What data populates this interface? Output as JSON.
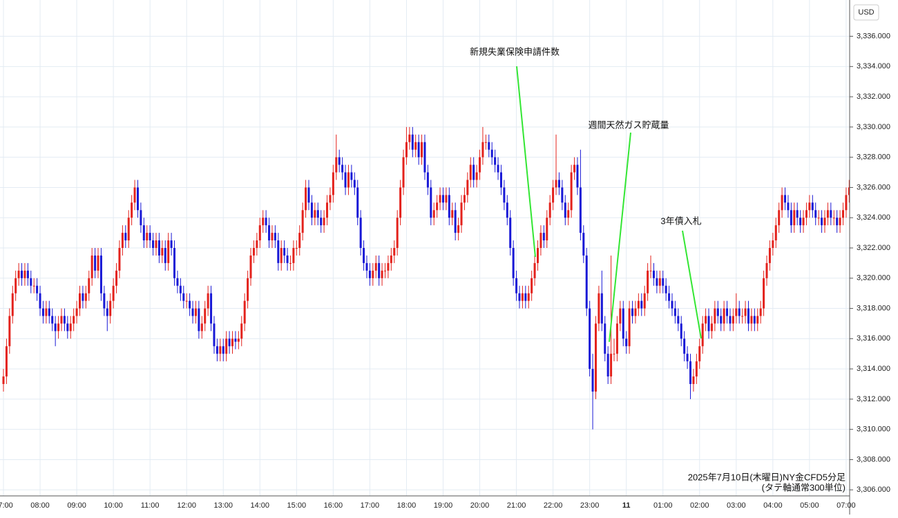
{
  "chart_data": {
    "type": "candlestick",
    "currency": "USD",
    "up_color": "#e3221c",
    "down_color": "#1818d6",
    "grid": true,
    "ylim": [
      3305.6,
      3338.4
    ],
    "yticks": [
      {
        "value": 3306,
        "label": "3,306.000"
      },
      {
        "value": 3308,
        "label": "3,308.000"
      },
      {
        "value": 3310,
        "label": "3,310.000"
      },
      {
        "value": 3312,
        "label": "3,312.000"
      },
      {
        "value": 3314,
        "label": "3,314.000"
      },
      {
        "value": 3316,
        "label": "3,316.000"
      },
      {
        "value": 3318,
        "label": "3,318.000"
      },
      {
        "value": 3320,
        "label": "3,320.000"
      },
      {
        "value": 3322,
        "label": "3,322.000"
      },
      {
        "value": 3324,
        "label": "3,324.000"
      },
      {
        "value": 3326,
        "label": "3,326.000"
      },
      {
        "value": 3328,
        "label": "3,328.000"
      },
      {
        "value": 3330,
        "label": "3,330.000"
      },
      {
        "value": 3332,
        "label": "3,332.000"
      },
      {
        "value": 3334,
        "label": "3,334.000"
      },
      {
        "value": 3336,
        "label": "3,336.000"
      }
    ],
    "annotations": [
      "新規失業保険申請件数",
      "週間天然ガス貯蔵量",
      "3年債入札"
    ],
    "note": [
      "2025年7月10日(木曜日)NY金CFD5分足",
      "(タテ軸通常300単位)"
    ],
    "categories": [
      "07:00",
      null,
      null,
      null,
      null,
      null,
      null,
      null,
      null,
      null,
      null,
      null,
      "08:00",
      null,
      null,
      null,
      null,
      null,
      null,
      null,
      null,
      null,
      null,
      null,
      "09:00",
      null,
      null,
      null,
      null,
      null,
      null,
      null,
      null,
      null,
      null,
      null,
      "10:00",
      null,
      null,
      null,
      null,
      null,
      null,
      null,
      null,
      null,
      null,
      null,
      "11:00",
      null,
      null,
      null,
      null,
      null,
      null,
      null,
      null,
      null,
      null,
      null,
      "12:00",
      null,
      null,
      null,
      null,
      null,
      null,
      null,
      null,
      null,
      null,
      null,
      "13:00",
      null,
      null,
      null,
      null,
      null,
      null,
      null,
      null,
      null,
      null,
      null,
      "14:00",
      null,
      null,
      null,
      null,
      null,
      null,
      null,
      null,
      null,
      null,
      null,
      "15:00",
      null,
      null,
      null,
      null,
      null,
      null,
      null,
      null,
      null,
      null,
      null,
      "16:00",
      null,
      null,
      null,
      null,
      null,
      null,
      null,
      null,
      null,
      null,
      null,
      "17:00",
      null,
      null,
      null,
      null,
      null,
      null,
      null,
      null,
      null,
      null,
      null,
      "18:00",
      null,
      null,
      null,
      null,
      null,
      null,
      null,
      null,
      null,
      null,
      null,
      "19:00",
      null,
      null,
      null,
      null,
      null,
      null,
      null,
      null,
      null,
      null,
      null,
      "20:00",
      null,
      null,
      null,
      null,
      null,
      null,
      null,
      null,
      null,
      null,
      null,
      "21:00",
      null,
      null,
      null,
      null,
      null,
      null,
      null,
      null,
      null,
      null,
      null,
      "22:00",
      null,
      null,
      null,
      null,
      null,
      null,
      null,
      null,
      null,
      null,
      null,
      "23:00",
      null,
      null,
      null,
      null,
      null,
      null,
      null,
      null,
      null,
      null,
      null,
      "11",
      null,
      null,
      null,
      null,
      null,
      null,
      null,
      null,
      null,
      null,
      null,
      "01:00",
      null,
      null,
      null,
      null,
      null,
      null,
      null,
      null,
      null,
      null,
      null,
      "02:00",
      null,
      null,
      null,
      null,
      null,
      null,
      null,
      null,
      null,
      null,
      null,
      "03:00",
      null,
      null,
      null,
      null,
      null,
      null,
      null,
      null,
      null,
      null,
      null,
      "04:00",
      null,
      null,
      null,
      null,
      null,
      null,
      null,
      null,
      null,
      null,
      null,
      "05:00",
      null,
      null,
      null,
      null,
      null,
      null,
      null,
      null,
      null,
      null,
      null,
      "07:00",
      null
    ],
    "open": [
      3313,
      3313.5,
      3315.5,
      3317.5,
      3319,
      3320,
      3320.5,
      3320,
      3320.5,
      3320,
      3319.5,
      3319.5,
      3319,
      3318,
      3317.5,
      3318,
      3317.5,
      3317,
      3316.5,
      3317,
      3317.5,
      3317,
      3316.5,
      3317,
      3317.5,
      3318,
      3319,
      3318.5,
      3319,
      3320,
      3321.5,
      3320.5,
      3321.5,
      3319,
      3318,
      3317.5,
      3318.5,
      3319.5,
      3320.5,
      3322,
      3323,
      3322.5,
      3324,
      3325,
      3326,
      3324.5,
      3323.5,
      3322.5,
      3323,
      3322.5,
      3322,
      3322.5,
      3321.5,
      3322,
      3321,
      3322.5,
      3322,
      3320,
      3319.5,
      3319,
      3318.5,
      3318.5,
      3318,
      3317.5,
      3318,
      3316.5,
      3317,
      3318,
      3319,
      3317,
      3315.5,
      3315,
      3315.5,
      3315,
      3316,
      3315.5,
      3316,
      3315.8,
      3316,
      3317,
      3318.5,
      3320,
      3321.5,
      3322,
      3322.5,
      3323.5,
      3324,
      3323.5,
      3322.5,
      3323,
      3322.5,
      3321,
      3322,
      3321.5,
      3321,
      3321,
      3322,
      3322,
      3323,
      3324.5,
      3326,
      3325,
      3324,
      3324.5,
      3324,
      3323.5,
      3324,
      3325,
      3325.5,
      3327,
      3328,
      3327.5,
      3327,
      3326,
      3327,
      3326.5,
      3326,
      3324,
      3322,
      3321,
      3320.5,
      3320,
      3320.5,
      3321,
      3320,
      3320.5,
      3320.5,
      3321,
      3321.5,
      3322,
      3324,
      3326,
      3328,
      3329,
      3329.5,
      3328.5,
      3329,
      3328,
      3329,
      3327,
      3326,
      3324,
      3324.5,
      3325,
      3325.5,
      3325,
      3325.5,
      3324,
      3324.5,
      3323,
      3323.5,
      3325,
      3325.5,
      3326.5,
      3327.5,
      3326.5,
      3327,
      3328,
      3329,
      3329,
      3328.5,
      3328,
      3327.5,
      3327,
      3326,
      3325,
      3324,
      3322,
      3320,
      3319,
      3318.5,
      3319,
      3318.5,
      3319,
      3320,
      3321,
      3322,
      3323,
      3322.5,
      3324,
      3325,
      3326,
      3326.5,
      3326,
      3325,
      3324,
      3324.5,
      3327,
      3327.5,
      3326,
      3323,
      3321.5,
      3318,
      3314,
      3312.5,
      3317,
      3319,
      3317,
      3315,
      3313.5,
      3315,
      3315,
      3317,
      3318,
      3316,
      3315.5,
      3318,
      3317.5,
      3318,
      3318.5,
      3318,
      3319,
      3320.5,
      3320.5,
      3320,
      3319.5,
      3320,
      3319.5,
      3319,
      3318.5,
      3318,
      3317.5,
      3317,
      3316,
      3315,
      3314.5,
      3313,
      3313.5,
      3314.5,
      3315.5,
      3317,
      3317.5,
      3316.5,
      3317,
      3318,
      3317.5,
      3317,
      3318,
      3317.5,
      3317,
      3317.5,
      3318,
      3317.5,
      3317.5,
      3318,
      3317,
      3317.5,
      3317,
      3317.5,
      3318,
      3320,
      3321,
      3322,
      3322.5,
      3323.5,
      3324.5,
      3325.5,
      3325,
      3324.5,
      3323.5,
      3324.5,
      3324,
      3323.5,
      3324,
      3324.5,
      3325,
      3324.5,
      3324,
      3324,
      3323.5,
      3324,
      3324.5,
      3324,
      3324,
      3323.5,
      3324,
      3324.5,
      3325.5
    ],
    "high": [
      3314,
      3316,
      3318,
      3319.5,
      3320.5,
      3321,
      3321,
      3321,
      3321,
      3320.5,
      3320,
      3320,
      3319.5,
      3318.5,
      3318.5,
      3318.5,
      3318,
      3317.5,
      3317.5,
      3318,
      3318,
      3317.5,
      3317.5,
      3318,
      3318.5,
      3319.5,
      3319.5,
      3319.5,
      3320.5,
      3322,
      3322,
      3322,
      3322,
      3319.5,
      3318.5,
      3319,
      3320,
      3321,
      3322.5,
      3323.5,
      3323.5,
      3324.5,
      3325.5,
      3326.5,
      3326.5,
      3325,
      3324,
      3323.5,
      3323.5,
      3323,
      3323,
      3323,
      3322.5,
      3322.5,
      3323,
      3323,
      3322.5,
      3320.5,
      3320,
      3319.5,
      3319,
      3319,
      3318.5,
      3318.5,
      3318.5,
      3317.5,
      3318.5,
      3319.5,
      3319.5,
      3317.5,
      3316,
      3316,
      3316,
      3316.5,
      3316.5,
      3316.5,
      3316.5,
      3316.5,
      3317.5,
      3319,
      3320.5,
      3322,
      3322.5,
      3323,
      3324,
      3324.5,
      3324.5,
      3324,
      3323.5,
      3323.5,
      3323,
      3322.5,
      3322.5,
      3322,
      3321.5,
      3322.5,
      3322.5,
      3323.5,
      3325,
      3326.5,
      3326.5,
      3325.5,
      3325,
      3325,
      3324.5,
      3324.5,
      3325.5,
      3326,
      3327.5,
      3329.5,
      3328.5,
      3328,
      3327.5,
      3327.5,
      3327.5,
      3327,
      3326.5,
      3324.5,
      3322.5,
      3321.5,
      3321,
      3321,
      3321.5,
      3321.5,
      3321,
      3321,
      3321.5,
      3322,
      3322.5,
      3324.5,
      3326.5,
      3328.5,
      3330,
      3330,
      3330,
      3329.5,
      3329.5,
      3329.5,
      3329.5,
      3327.5,
      3326.5,
      3325,
      3325.5,
      3326,
      3326,
      3326,
      3326,
      3325,
      3325,
      3324,
      3325.5,
      3326,
      3327,
      3328,
      3328,
      3327.5,
      3328.5,
      3330,
      3329.5,
      3329.5,
      3329,
      3328.5,
      3328,
      3327.5,
      3326.5,
      3325.5,
      3324.5,
      3322.5,
      3320.5,
      3319.5,
      3319.5,
      3319.5,
      3319.5,
      3320.5,
      3321.5,
      3322.5,
      3323.5,
      3323.5,
      3324.5,
      3325.5,
      3326.5,
      3329.5,
      3327,
      3326.5,
      3325.5,
      3325,
      3327.5,
      3328,
      3328,
      3328.5,
      3323.5,
      3322,
      3318.5,
      3315,
      3317.5,
      3319.5,
      3320.5,
      3317.5,
      3315.5,
      3321.5,
      3316,
      3317.5,
      3318.5,
      3318.5,
      3316.5,
      3318.5,
      3318.5,
      3318.5,
      3319,
      3319,
      3319.5,
      3321,
      3321.5,
      3321,
      3320.5,
      3320.5,
      3320.5,
      3320,
      3319.5,
      3319,
      3318.5,
      3318,
      3317.5,
      3316.5,
      3315.5,
      3315,
      3314,
      3315,
      3316,
      3317.5,
      3318,
      3318,
      3317.5,
      3318.5,
      3318.5,
      3318,
      3318.5,
      3318.5,
      3318,
      3318,
      3319,
      3318.5,
      3318,
      3318.5,
      3318.5,
      3318,
      3318,
      3318,
      3318.5,
      3320.5,
      3321.5,
      3322.5,
      3323,
      3324,
      3325,
      3326,
      3326,
      3325.5,
      3325,
      3325,
      3325,
      3324.5,
      3324.5,
      3325,
      3325.5,
      3325.5,
      3325,
      3324.5,
      3324.5,
      3324.5,
      3325,
      3325,
      3324.5,
      3324.5,
      3324.5,
      3325,
      3326,
      3326.5
    ],
    "low": [
      3312.5,
      3313,
      3315,
      3317,
      3318.5,
      3319.5,
      3319.5,
      3319.5,
      3319.5,
      3319,
      3319,
      3318.5,
      3317.5,
      3317,
      3317,
      3317,
      3316.5,
      3315.5,
      3316,
      3316.5,
      3316.5,
      3316,
      3316,
      3316.5,
      3317,
      3317.5,
      3318,
      3318,
      3318.5,
      3319.5,
      3320,
      3320,
      3318.5,
      3317.5,
      3316.5,
      3317,
      3318,
      3319,
      3320,
      3321.5,
      3322,
      3322,
      3323.5,
      3324.5,
      3324,
      3323,
      3322,
      3322,
      3322,
      3321.5,
      3321.5,
      3321,
      3321,
      3320.5,
      3320.5,
      3321.5,
      3319.5,
      3319,
      3318.5,
      3318,
      3318,
      3317.5,
      3317,
      3317,
      3316,
      3316,
      3316.5,
      3317.5,
      3316.5,
      3315,
      3314.5,
      3314.5,
      3314.5,
      3314.5,
      3315,
      3315,
      3315.3,
      3315.3,
      3315.5,
      3316.5,
      3318,
      3319.5,
      3321,
      3321.5,
      3322,
      3323,
      3323,
      3322,
      3322,
      3322,
      3320.5,
      3320.5,
      3321,
      3320.5,
      3320.5,
      3320.5,
      3321.5,
      3321.5,
      3322.5,
      3324,
      3324.5,
      3323.5,
      3323.5,
      3323.5,
      3323,
      3323,
      3323.5,
      3324.5,
      3325,
      3326.5,
      3327,
      3326.5,
      3325.5,
      3325.5,
      3326,
      3325.5,
      3323.5,
      3321.5,
      3320.5,
      3320,
      3319.5,
      3319.5,
      3320,
      3319.5,
      3319.5,
      3320,
      3320,
      3320.5,
      3321,
      3321.5,
      3323.5,
      3325.5,
      3327.5,
      3328.5,
      3328,
      3328,
      3327.5,
      3327.5,
      3326.5,
      3325.5,
      3323.5,
      3323.5,
      3324,
      3324.5,
      3324.5,
      3324.5,
      3323.5,
      3323.5,
      3322.5,
      3322.5,
      3323,
      3324.5,
      3325,
      3326,
      3326,
      3326,
      3326.5,
      3327.5,
      3328.5,
      3328,
      3327.5,
      3327,
      3326.5,
      3325.5,
      3324.5,
      3323.5,
      3321.5,
      3319.5,
      3318.5,
      3318,
      3318,
      3318,
      3318,
      3318.5,
      3319.5,
      3320.5,
      3321.5,
      3322,
      3322,
      3323.5,
      3324.5,
      3325.5,
      3325.5,
      3324.5,
      3323.5,
      3323.5,
      3324,
      3326.5,
      3325.5,
      3322.5,
      3321,
      3317.5,
      3313.5,
      3310,
      3312,
      3316.5,
      3316.5,
      3314.5,
      3313,
      3313,
      3314.5,
      3314.5,
      3316.5,
      3315.5,
      3315,
      3315,
      3317,
      3317,
      3317.5,
      3317.5,
      3317.5,
      3318.5,
      3320,
      3319.5,
      3319,
      3319,
      3319,
      3318.5,
      3318,
      3317.5,
      3317,
      3316.5,
      3315.5,
      3314.5,
      3314,
      3312,
      3312.5,
      3313,
      3314,
      3315,
      3316.5,
      3316,
      3316,
      3316.5,
      3317,
      3316.5,
      3316.5,
      3317,
      3316.5,
      3316.5,
      3317,
      3317,
      3317,
      3317,
      3316.5,
      3316.5,
      3316.5,
      3316.5,
      3317,
      3317.5,
      3319.5,
      3320.5,
      3321.5,
      3322,
      3323,
      3324,
      3324.5,
      3324,
      3323,
      3323,
      3323.5,
      3323,
      3323,
      3323.5,
      3324,
      3324,
      3323.5,
      3323.5,
      3323,
      3323,
      3323.5,
      3323.5,
      3323.5,
      3323,
      3323,
      3323.5,
      3324,
      3325
    ],
    "close": [
      3313.5,
      3315.5,
      3317.5,
      3319,
      3320,
      3320.5,
      3320,
      3320.5,
      3320,
      3319.5,
      3319.5,
      3319,
      3318,
      3317.5,
      3318,
      3317.5,
      3317,
      3316.5,
      3317,
      3317.5,
      3317,
      3316.5,
      3317,
      3317.5,
      3318,
      3319,
      3318.5,
      3319,
      3320,
      3321.5,
      3320.5,
      3321.5,
      3319,
      3318,
      3317.5,
      3318.5,
      3319.5,
      3320.5,
      3322,
      3323,
      3322.5,
      3324,
      3325,
      3326,
      3324.5,
      3323.5,
      3322.5,
      3323,
      3322.5,
      3322,
      3322.5,
      3321.5,
      3322,
      3321,
      3322.5,
      3322,
      3320,
      3319.5,
      3319,
      3318.5,
      3318.5,
      3318,
      3317.5,
      3318,
      3316.5,
      3317,
      3318,
      3319,
      3317,
      3315.5,
      3315,
      3315.5,
      3315,
      3316,
      3315.5,
      3316,
      3315.8,
      3316,
      3317,
      3318.5,
      3320,
      3321.5,
      3322,
      3322.5,
      3323.5,
      3324,
      3323.5,
      3322.5,
      3323,
      3322.5,
      3321,
      3322,
      3321.5,
      3321,
      3321,
      3322,
      3322,
      3323,
      3324.5,
      3326,
      3325,
      3324,
      3324.5,
      3324,
      3323.5,
      3324,
      3325,
      3325.5,
      3327,
      3328,
      3327.5,
      3327,
      3326,
      3327,
      3326.5,
      3326,
      3324,
      3322,
      3321,
      3320.5,
      3320,
      3320.5,
      3321,
      3320,
      3320.5,
      3320.5,
      3321,
      3321.5,
      3322,
      3324,
      3326,
      3328,
      3329,
      3329.5,
      3328.5,
      3329,
      3328,
      3329,
      3327,
      3326,
      3324,
      3324.5,
      3325,
      3325.5,
      3325,
      3325.5,
      3324,
      3324.5,
      3323,
      3323.5,
      3325,
      3325.5,
      3326.5,
      3327.5,
      3326.5,
      3327,
      3328,
      3329,
      3329,
      3328.5,
      3328,
      3327.5,
      3327,
      3326,
      3325,
      3324,
      3322,
      3320,
      3319,
      3318.5,
      3319,
      3318.5,
      3319,
      3320,
      3321,
      3322,
      3323,
      3322.5,
      3324,
      3325,
      3326,
      3326.5,
      3326,
      3325,
      3324,
      3324.5,
      3327,
      3327.5,
      3326,
      3323,
      3321.5,
      3318,
      3314,
      3312.5,
      3317,
      3319,
      3317,
      3315,
      3313.5,
      3315,
      3315,
      3317,
      3318,
      3316,
      3315.5,
      3318,
      3317.5,
      3318,
      3318.5,
      3318,
      3319,
      3320.5,
      3320.5,
      3320,
      3319.5,
      3320,
      3319.5,
      3319,
      3318.5,
      3318,
      3317.5,
      3317,
      3316,
      3315,
      3314.5,
      3313,
      3313.5,
      3314.5,
      3315.5,
      3317,
      3317.5,
      3316.5,
      3317,
      3318,
      3317.5,
      3317,
      3318,
      3317.5,
      3317,
      3317.5,
      3318,
      3317.5,
      3317.5,
      3318,
      3317,
      3317.5,
      3317,
      3317.5,
      3318,
      3320,
      3321,
      3322,
      3322.5,
      3323.5,
      3324.5,
      3325.5,
      3325,
      3324.5,
      3323.5,
      3324.5,
      3324,
      3323.5,
      3324,
      3324.5,
      3325,
      3324.5,
      3324,
      3324,
      3323.5,
      3324,
      3324.5,
      3324,
      3324,
      3323.5,
      3324,
      3324.5,
      3325.5,
      3326
    ]
  }
}
